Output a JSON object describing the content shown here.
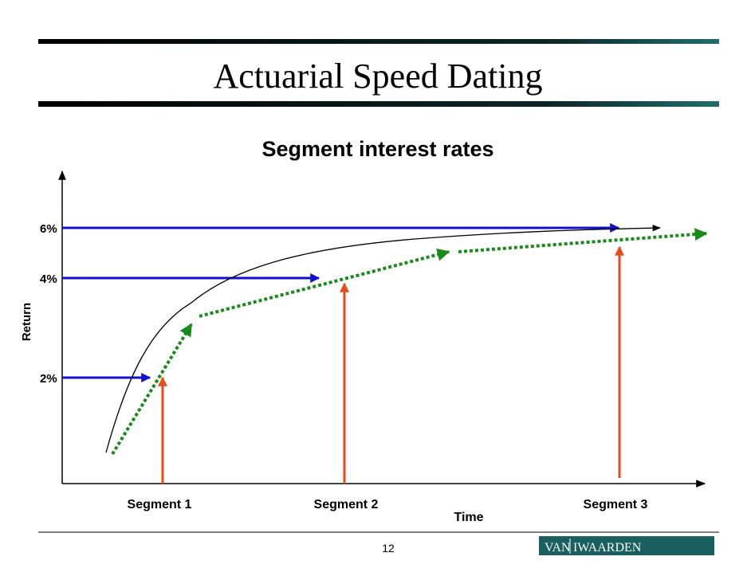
{
  "header": {
    "title": "Actuarial Speed Dating"
  },
  "diagram": {
    "title": "Segment interest rates",
    "y_labels": [
      "6%",
      "4%",
      "2%"
    ],
    "y_axis_label": "Return",
    "x_axis_label": "Time",
    "segments": [
      "Segment 1",
      "Segment 2",
      "Segment 3"
    ]
  },
  "footer": {
    "page": "12",
    "logo_left": "VAN",
    "logo_right": "IWAARDEN"
  }
}
